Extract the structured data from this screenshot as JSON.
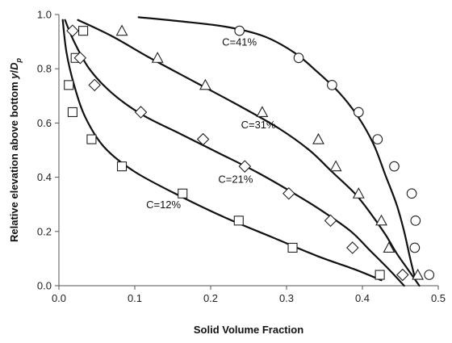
{
  "chart_data": {
    "type": "scatter",
    "xlabel": "Solid Volume Fraction",
    "ylabel_prefix": "Relative elevation above bottom ",
    "ylabel_var": "y",
    "ylabel_sep": "/",
    "ylabel_var2": "D",
    "ylabel_sub": "p",
    "xlim": [
      0,
      0.5
    ],
    "ylim": [
      0,
      1.0
    ],
    "xticks": [
      0.0,
      0.1,
      0.2,
      0.3,
      0.4,
      0.5
    ],
    "xtick_labels": [
      "0.0",
      "0.1",
      "0.2",
      "0.3",
      "0.4",
      "0.5"
    ],
    "yticks": [
      0.0,
      0.2,
      0.4,
      0.6,
      0.8,
      1.0
    ],
    "ytick_labels": [
      "0.0",
      "0.2",
      "0.4",
      "0.6",
      "0.8",
      "1.0"
    ],
    "grid": false,
    "legend": "none",
    "series": [
      {
        "marker": "square",
        "points": [
          {
            "x": 0.013,
            "y": 0.74
          },
          {
            "x": 0.018,
            "y": 0.64
          },
          {
            "x": 0.022,
            "y": 0.84
          },
          {
            "x": 0.032,
            "y": 0.94
          },
          {
            "x": 0.043,
            "y": 0.54
          },
          {
            "x": 0.083,
            "y": 0.44
          },
          {
            "x": 0.163,
            "y": 0.34
          },
          {
            "x": 0.237,
            "y": 0.24
          },
          {
            "x": 0.308,
            "y": 0.14
          },
          {
            "x": 0.423,
            "y": 0.04
          }
        ],
        "curve": [
          [
            0.005,
            0.98
          ],
          [
            0.01,
            0.86
          ],
          [
            0.02,
            0.74
          ],
          [
            0.035,
            0.62
          ],
          [
            0.06,
            0.51
          ],
          [
            0.1,
            0.42
          ],
          [
            0.16,
            0.33
          ],
          [
            0.22,
            0.25
          ],
          [
            0.28,
            0.18
          ],
          [
            0.34,
            0.11
          ],
          [
            0.39,
            0.06
          ],
          [
            0.425,
            0.02
          ]
        ]
      },
      {
        "marker": "diamond",
        "points": [
          {
            "x": 0.018,
            "y": 0.94
          },
          {
            "x": 0.028,
            "y": 0.84
          },
          {
            "x": 0.047,
            "y": 0.74
          },
          {
            "x": 0.108,
            "y": 0.64
          },
          {
            "x": 0.19,
            "y": 0.54
          },
          {
            "x": 0.245,
            "y": 0.44
          },
          {
            "x": 0.303,
            "y": 0.34
          },
          {
            "x": 0.358,
            "y": 0.24
          },
          {
            "x": 0.387,
            "y": 0.14
          },
          {
            "x": 0.453,
            "y": 0.04
          }
        ],
        "curve": [
          [
            0.008,
            0.98
          ],
          [
            0.02,
            0.9
          ],
          [
            0.04,
            0.8
          ],
          [
            0.07,
            0.71
          ],
          [
            0.11,
            0.63
          ],
          [
            0.16,
            0.56
          ],
          [
            0.21,
            0.49
          ],
          [
            0.26,
            0.42
          ],
          [
            0.31,
            0.34
          ],
          [
            0.35,
            0.27
          ],
          [
            0.385,
            0.2
          ],
          [
            0.41,
            0.13
          ],
          [
            0.435,
            0.06
          ],
          [
            0.455,
            0.0
          ]
        ]
      },
      {
        "marker": "triangle",
        "points": [
          {
            "x": 0.083,
            "y": 0.94
          },
          {
            "x": 0.13,
            "y": 0.84
          },
          {
            "x": 0.193,
            "y": 0.74
          },
          {
            "x": 0.268,
            "y": 0.64
          },
          {
            "x": 0.342,
            "y": 0.54
          },
          {
            "x": 0.365,
            "y": 0.44
          },
          {
            "x": 0.395,
            "y": 0.34
          },
          {
            "x": 0.425,
            "y": 0.24
          },
          {
            "x": 0.435,
            "y": 0.14
          },
          {
            "x": 0.473,
            "y": 0.04
          }
        ],
        "curve": [
          [
            0.025,
            0.98
          ],
          [
            0.07,
            0.92
          ],
          [
            0.12,
            0.84
          ],
          [
            0.18,
            0.75
          ],
          [
            0.24,
            0.66
          ],
          [
            0.29,
            0.58
          ],
          [
            0.33,
            0.5
          ],
          [
            0.36,
            0.42
          ],
          [
            0.39,
            0.34
          ],
          [
            0.41,
            0.27
          ],
          [
            0.43,
            0.19
          ],
          [
            0.445,
            0.12
          ],
          [
            0.46,
            0.06
          ],
          [
            0.475,
            0.0
          ]
        ]
      },
      {
        "marker": "circle",
        "points": [
          {
            "x": 0.238,
            "y": 0.94
          },
          {
            "x": 0.316,
            "y": 0.84
          },
          {
            "x": 0.36,
            "y": 0.74
          },
          {
            "x": 0.395,
            "y": 0.64
          },
          {
            "x": 0.42,
            "y": 0.54
          },
          {
            "x": 0.442,
            "y": 0.44
          },
          {
            "x": 0.465,
            "y": 0.34
          },
          {
            "x": 0.47,
            "y": 0.24
          },
          {
            "x": 0.469,
            "y": 0.14
          },
          {
            "x": 0.488,
            "y": 0.04
          }
        ],
        "curve": [
          [
            0.105,
            0.99
          ],
          [
            0.16,
            0.975
          ],
          [
            0.22,
            0.955
          ],
          [
            0.27,
            0.92
          ],
          [
            0.31,
            0.86
          ],
          [
            0.34,
            0.79
          ],
          [
            0.37,
            0.71
          ],
          [
            0.395,
            0.62
          ],
          [
            0.415,
            0.52
          ],
          [
            0.43,
            0.41
          ],
          [
            0.445,
            0.3
          ],
          [
            0.455,
            0.2
          ],
          [
            0.463,
            0.1
          ],
          [
            0.47,
            0.02
          ]
        ]
      }
    ],
    "annotations": [
      {
        "text": "C=12%",
        "x": 0.115,
        "y": 0.285
      },
      {
        "text": "C=21%",
        "x": 0.21,
        "y": 0.38
      },
      {
        "text": "C=31%",
        "x": 0.24,
        "y": 0.58
      },
      {
        "text": "C=41%",
        "x": 0.215,
        "y": 0.885
      }
    ]
  }
}
